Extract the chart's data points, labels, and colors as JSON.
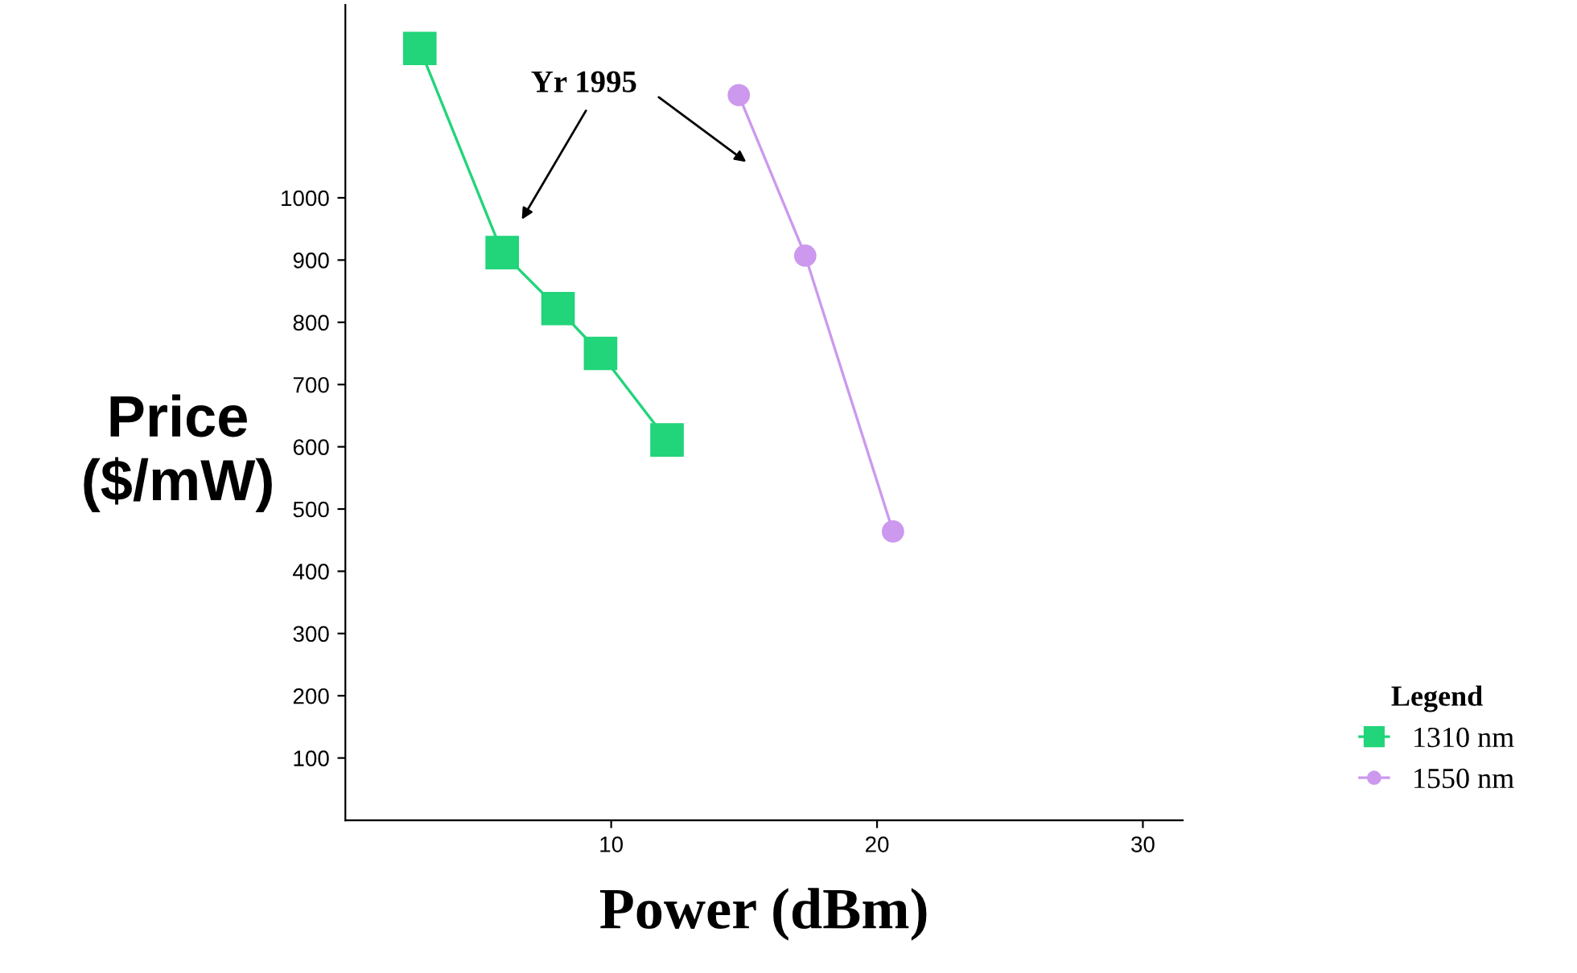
{
  "chart_data": {
    "type": "line",
    "xlabel": "Power (dBm)",
    "ylabel": "Price\n($/mW)",
    "legend_title": "Legend",
    "series": [
      {
        "name": "1310 nm",
        "color": "#22d47a",
        "marker": "square",
        "x": [
          2.8,
          5.9,
          8.0,
          9.6,
          12.1
        ],
        "values": [
          1240,
          912,
          822,
          750,
          611
        ]
      },
      {
        "name": "1550 nm",
        "color": "#cc99ee",
        "marker": "circle",
        "x": [
          14.8,
          17.3,
          20.6
        ],
        "values": [
          1165,
          907,
          464
        ]
      }
    ],
    "annotations": [
      "Yr 1995"
    ],
    "xlim": [
      0,
      31.5
    ],
    "ylim": [
      0,
      1310
    ],
    "xticks": [
      10,
      20,
      30
    ],
    "yticks": [
      100,
      200,
      300,
      400,
      500,
      600,
      700,
      800,
      900,
      1000
    ],
    "grid": false,
    "legend": "bottom right",
    "line_style": "solid"
  }
}
